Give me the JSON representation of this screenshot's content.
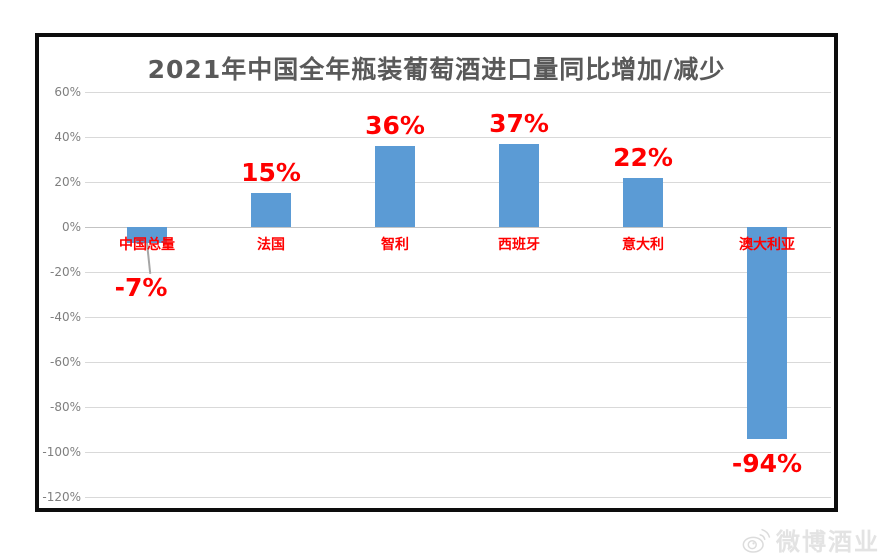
{
  "chart_data": {
    "type": "bar",
    "title": "2021年中国全年瓶装葡萄酒进口量同比增加/减少",
    "categories": [
      "中国总量",
      "法国",
      "智利",
      "西班牙",
      "意大利",
      "澳大利亚"
    ],
    "values": [
      -7,
      15,
      36,
      37,
      22,
      -94
    ],
    "value_labels": [
      "-7%",
      "15%",
      "36%",
      "37%",
      "22%",
      "-94%"
    ],
    "yticks": [
      60,
      40,
      20,
      0,
      -20,
      -40,
      -60,
      -80,
      -100,
      -120
    ],
    "ytick_labels": [
      "60%",
      "40%",
      "20%",
      "0%",
      "-20%",
      "-40%",
      "-60%",
      "-80%",
      "-100%",
      "-120%"
    ],
    "ylim": [
      -120,
      60
    ],
    "grid": true,
    "legend_position": "none",
    "bar_color": "#5B9BD5",
    "value_label_color": "#FF0000",
    "category_label_color": "#FF0000",
    "title_color": "#595959",
    "axis_label_color": "#7F7F7F"
  },
  "watermark": {
    "icon": "weibo-icon",
    "text": "微博酒业"
  }
}
